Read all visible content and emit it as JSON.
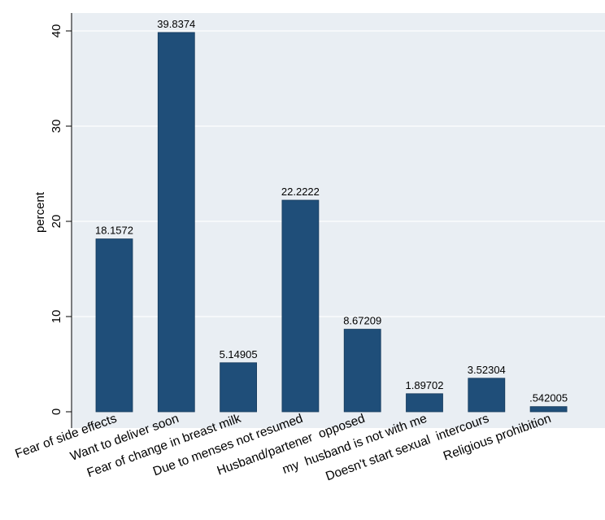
{
  "chart_data": {
    "type": "bar",
    "title": "",
    "xlabel": "",
    "ylabel": "percent",
    "ylim": [
      0,
      40
    ],
    "yticks": [
      0,
      10,
      20,
      30,
      40
    ],
    "grid": true,
    "categories": [
      "Fear of side effects",
      "Want to deliver soon",
      "Fear of change in breast milk",
      "Due to menses not resumed",
      "Husband/partener  opposed",
      "my  husband is not with me",
      "Doesn't start sexual  intercours",
      "Religious prohibition"
    ],
    "values": [
      18.1572,
      39.8374,
      5.14905,
      22.2222,
      8.67209,
      1.89702,
      3.52304,
      0.542005
    ],
    "data_labels": [
      "18.1572",
      "39.8374",
      "5.14905",
      "22.2222",
      "8.67209",
      "1.89702",
      "3.52304",
      ".542005"
    ],
    "colors": {
      "bar": "#1f4e79",
      "plot_background": "#e9eef3",
      "grid": "#ffffff"
    }
  }
}
